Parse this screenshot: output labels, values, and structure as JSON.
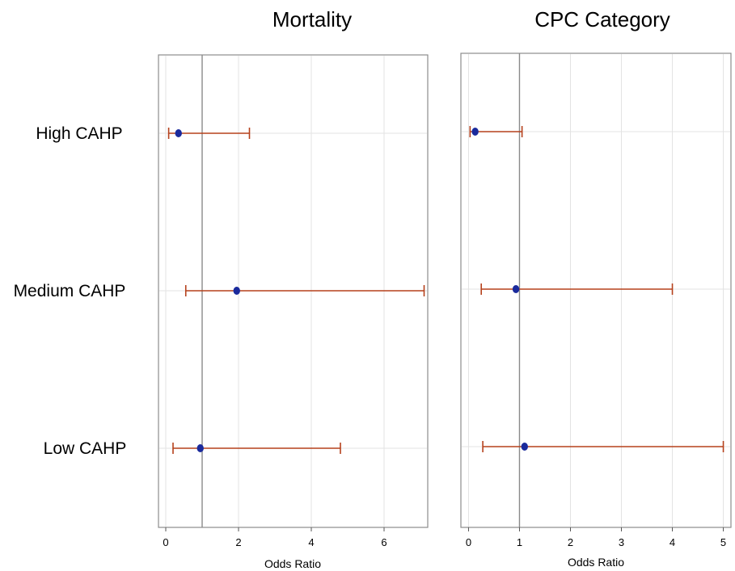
{
  "chart_data": [
    {
      "type": "forest",
      "title": "Mortality",
      "xlabel": "Odds Ratio",
      "xlim": [
        -0.2,
        7.2
      ],
      "xticks": [
        "0",
        "2",
        "4",
        "6"
      ],
      "reference_line": 1,
      "grid": true,
      "categories": [
        "High CAHP",
        "Medium CAHP",
        "Low CAHP"
      ],
      "estimates": [
        0.35,
        1.95,
        0.95
      ],
      "ci_lower": [
        0.08,
        0.55,
        0.2
      ],
      "ci_upper": [
        2.3,
        7.1,
        4.8
      ],
      "point_color": "#1a2a9c",
      "ci_color": "#b5411c"
    },
    {
      "type": "forest",
      "title": "CPC Category",
      "xlabel": "Odds Ratio",
      "xlim": [
        -0.15,
        5.15
      ],
      "xticks": [
        "0",
        "1",
        "2",
        "3",
        "4",
        "5"
      ],
      "reference_line": 1,
      "grid": true,
      "categories": [
        "High CAHP",
        "Medium CAHP",
        "Low CAHP"
      ],
      "estimates": [
        0.13,
        0.93,
        1.1
      ],
      "ci_lower": [
        0.03,
        0.25,
        0.28
      ],
      "ci_upper": [
        1.05,
        4.0,
        5.0
      ],
      "point_color": "#1a2a9c",
      "ci_color": "#b5411c"
    }
  ]
}
